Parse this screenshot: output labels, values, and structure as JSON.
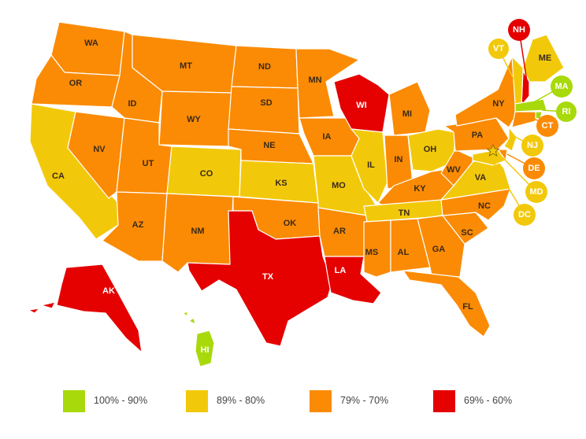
{
  "map": {
    "category_colors": {
      "c1": "#a8d90a",
      "c2": "#f2c90a",
      "c3": "#fb8b04",
      "c4": "#e40100"
    },
    "states": [
      {
        "abbr": "WA",
        "category": "c3"
      },
      {
        "abbr": "OR",
        "category": "c3"
      },
      {
        "abbr": "CA",
        "category": "c2"
      },
      {
        "abbr": "NV",
        "category": "c3"
      },
      {
        "abbr": "ID",
        "category": "c3"
      },
      {
        "abbr": "MT",
        "category": "c3"
      },
      {
        "abbr": "WY",
        "category": "c3"
      },
      {
        "abbr": "UT",
        "category": "c3"
      },
      {
        "abbr": "AZ",
        "category": "c3"
      },
      {
        "abbr": "CO",
        "category": "c2"
      },
      {
        "abbr": "NM",
        "category": "c3"
      },
      {
        "abbr": "ND",
        "category": "c3"
      },
      {
        "abbr": "SD",
        "category": "c3"
      },
      {
        "abbr": "NE",
        "category": "c3"
      },
      {
        "abbr": "KS",
        "category": "c2"
      },
      {
        "abbr": "OK",
        "category": "c3"
      },
      {
        "abbr": "TX",
        "category": "c4"
      },
      {
        "abbr": "MN",
        "category": "c3"
      },
      {
        "abbr": "IA",
        "category": "c3"
      },
      {
        "abbr": "MO",
        "category": "c2"
      },
      {
        "abbr": "AR",
        "category": "c3"
      },
      {
        "abbr": "LA",
        "category": "c4"
      },
      {
        "abbr": "WI",
        "category": "c4"
      },
      {
        "abbr": "IL",
        "category": "c2"
      },
      {
        "abbr": "MI",
        "category": "c3"
      },
      {
        "abbr": "IN",
        "category": "c3"
      },
      {
        "abbr": "OH",
        "category": "c2"
      },
      {
        "abbr": "KY",
        "category": "c3"
      },
      {
        "abbr": "TN",
        "category": "c2"
      },
      {
        "abbr": "MS",
        "category": "c3"
      },
      {
        "abbr": "AL",
        "category": "c3"
      },
      {
        "abbr": "GA",
        "category": "c3"
      },
      {
        "abbr": "FL",
        "category": "c3"
      },
      {
        "abbr": "SC",
        "category": "c3"
      },
      {
        "abbr": "NC",
        "category": "c3"
      },
      {
        "abbr": "VA",
        "category": "c2"
      },
      {
        "abbr": "WV",
        "category": "c3"
      },
      {
        "abbr": "PA",
        "category": "c3"
      },
      {
        "abbr": "NY",
        "category": "c3"
      },
      {
        "abbr": "ME",
        "category": "c2"
      },
      {
        "abbr": "AK",
        "category": "c4"
      },
      {
        "abbr": "HI",
        "category": "c1"
      }
    ],
    "callouts": [
      {
        "abbr": "NH",
        "category": "c4"
      },
      {
        "abbr": "VT",
        "category": "c2"
      },
      {
        "abbr": "MA",
        "category": "c1"
      },
      {
        "abbr": "RI",
        "category": "c1"
      },
      {
        "abbr": "CT",
        "category": "c3"
      },
      {
        "abbr": "NJ",
        "category": "c2"
      },
      {
        "abbr": "DE",
        "category": "c3"
      },
      {
        "abbr": "MD",
        "category": "c2"
      },
      {
        "abbr": "DC",
        "category": "c2"
      }
    ],
    "capital_marker": "star-icon"
  },
  "legend": {
    "items": [
      {
        "label": "100% - 90%",
        "category": "c1"
      },
      {
        "label": "89% - 80%",
        "category": "c2"
      },
      {
        "label": "79% - 70%",
        "category": "c3"
      },
      {
        "label": "69% - 60%",
        "category": "c4"
      }
    ]
  }
}
